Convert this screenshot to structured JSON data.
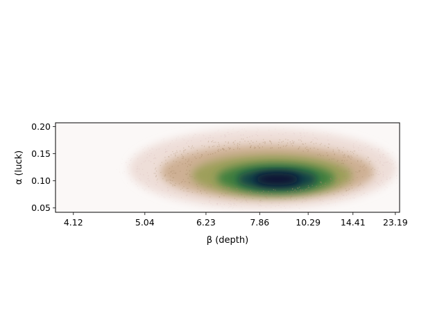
{
  "chart_data": {
    "type": "heatmap",
    "title": "",
    "xlabel": "β (depth)",
    "ylabel": "α (luck)",
    "x_scale": "reciprocal",
    "x_ticks": [
      4.12,
      5.04,
      6.23,
      7.86,
      10.29,
      14.41,
      23.19
    ],
    "x_tick_labels": [
      "4.12",
      "5.04",
      "6.23",
      "7.86",
      "10.29",
      "14.41",
      "23.19"
    ],
    "xlim": [
      3.94,
      24.7
    ],
    "y_ticks": [
      0.05,
      0.1,
      0.15,
      0.2
    ],
    "y_tick_labels": [
      "0.05",
      "0.10",
      "0.15",
      "0.20"
    ],
    "ylim": [
      0.042,
      0.207
    ],
    "grid": false,
    "density": {
      "description_free": true,
      "peak_beta": 8.6,
      "peak_alpha": 0.103,
      "core_alpha_range": [
        0.085,
        0.12
      ],
      "cloud_beta_range": [
        4.8,
        23.5
      ],
      "cloud_alpha_range": [
        0.045,
        0.2
      ],
      "colormap": [
        "#fbf7f6",
        "#e3c8c0",
        "#b58a5c",
        "#8d9a45",
        "#2f7a3a",
        "#0f3d48",
        "#0a0a30"
      ]
    }
  }
}
